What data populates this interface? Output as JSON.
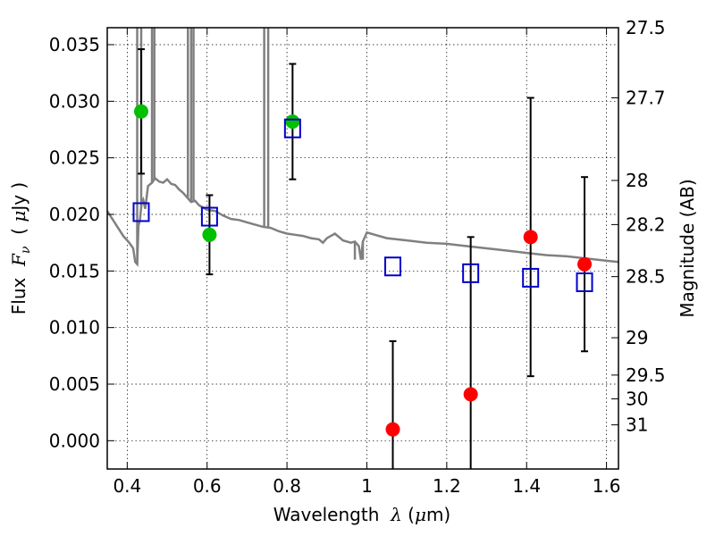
{
  "chart_data": {
    "type": "scatter",
    "xlabel": "Wavelength  λ (μm)",
    "ylabel": "Flux  Fν  ( μJy )",
    "ylabel_right": "Magnitude (AB)",
    "xlim": [
      0.35,
      1.63
    ],
    "ylim": [
      -0.0025,
      0.0365
    ],
    "grid": true,
    "x_ticks": [
      {
        "value": 0.4,
        "label": "0.4"
      },
      {
        "value": 0.6,
        "label": "0.6"
      },
      {
        "value": 0.8,
        "label": "0.8"
      },
      {
        "value": 1.0,
        "label": "1"
      },
      {
        "value": 1.2,
        "label": "1.2"
      },
      {
        "value": 1.4,
        "label": "1.4"
      },
      {
        "value": 1.6,
        "label": "1.6"
      }
    ],
    "y_ticks": [
      {
        "value": 0.0,
        "label": "0.000"
      },
      {
        "value": 0.005,
        "label": "0.005"
      },
      {
        "value": 0.01,
        "label": "0.010"
      },
      {
        "value": 0.015,
        "label": "0.015"
      },
      {
        "value": 0.02,
        "label": "0.020"
      },
      {
        "value": 0.025,
        "label": "0.025"
      },
      {
        "value": 0.03,
        "label": "0.030"
      },
      {
        "value": 0.035,
        "label": "0.035"
      }
    ],
    "right_ticks": [
      {
        "flux": 0.0365,
        "label": "27.5"
      },
      {
        "flux": 0.0303,
        "label": "27.7"
      },
      {
        "flux": 0.023,
        "label": "28"
      },
      {
        "flux": 0.0191,
        "label": "28.2"
      },
      {
        "flux": 0.0145,
        "label": "28.5"
      },
      {
        "flux": 0.0091,
        "label": "29"
      },
      {
        "flux": 0.0058,
        "label": "29.5"
      },
      {
        "flux": 0.0037,
        "label": "30"
      },
      {
        "flux": 0.0014,
        "label": "31"
      }
    ],
    "series": [
      {
        "name": "",
        "color": "#00c000",
        "marker": "circle",
        "points": [
          {
            "x": 0.435,
            "y": 0.0291,
            "err": 0.0055
          },
          {
            "x": 0.606,
            "y": 0.0182,
            "err": 0.0035
          },
          {
            "x": 0.814,
            "y": 0.0282,
            "err": 0.0051
          }
        ]
      },
      {
        "name": "",
        "color": "#ff0000",
        "marker": "circle",
        "points": [
          {
            "x": 1.065,
            "y": 0.001,
            "err": 0.0078
          },
          {
            "x": 1.26,
            "y": 0.0041,
            "err": 0.0139
          },
          {
            "x": 1.41,
            "y": 0.018,
            "err": 0.0123
          },
          {
            "x": 1.545,
            "y": 0.0156,
            "err": 0.0077
          }
        ]
      },
      {
        "name": "",
        "color": "#0000cc",
        "marker": "open-square",
        "points": [
          {
            "x": 0.435,
            "y": 0.0202
          },
          {
            "x": 0.606,
            "y": 0.0198
          },
          {
            "x": 0.814,
            "y": 0.0276
          },
          {
            "x": 1.065,
            "y": 0.0154
          },
          {
            "x": 1.26,
            "y": 0.0148
          },
          {
            "x": 1.41,
            "y": 0.0144
          },
          {
            "x": 1.545,
            "y": 0.014
          }
        ]
      }
    ],
    "spectrum": {
      "color": "#808080",
      "points": [
        [
          0.35,
          0.0203
        ],
        [
          0.37,
          0.0192
        ],
        [
          0.39,
          0.0181
        ],
        [
          0.405,
          0.0175
        ],
        [
          0.415,
          0.017
        ],
        [
          0.42,
          0.0158
        ],
        [
          0.425,
          0.0156
        ],
        [
          0.428,
          0.019
        ],
        [
          0.432,
          0.0195
        ],
        [
          0.436,
          0.021
        ],
        [
          0.44,
          0.0213
        ],
        [
          0.445,
          0.0205
        ],
        [
          0.452,
          0.0225
        ],
        [
          0.462,
          0.0228
        ],
        [
          0.47,
          0.0232
        ],
        [
          0.48,
          0.0229
        ],
        [
          0.49,
          0.0228
        ],
        [
          0.5,
          0.0231
        ],
        [
          0.51,
          0.0227
        ],
        [
          0.52,
          0.0226
        ],
        [
          0.53,
          0.0222
        ],
        [
          0.54,
          0.0219
        ],
        [
          0.55,
          0.0215
        ],
        [
          0.56,
          0.0211
        ],
        [
          0.57,
          0.0212
        ],
        [
          0.58,
          0.0208
        ],
        [
          0.59,
          0.0206
        ],
        [
          0.6,
          0.0204
        ],
        [
          0.62,
          0.0203
        ],
        [
          0.64,
          0.0199
        ],
        [
          0.66,
          0.0196
        ],
        [
          0.68,
          0.0195
        ],
        [
          0.7,
          0.0193
        ],
        [
          0.72,
          0.0191
        ],
        [
          0.74,
          0.0189
        ],
        [
          0.76,
          0.0188
        ],
        [
          0.78,
          0.0185
        ],
        [
          0.8,
          0.0183
        ],
        [
          0.82,
          0.0182
        ],
        [
          0.84,
          0.0181
        ],
        [
          0.86,
          0.0179
        ],
        [
          0.88,
          0.0178
        ],
        [
          0.89,
          0.0175
        ],
        [
          0.9,
          0.0179
        ],
        [
          0.92,
          0.0183
        ],
        [
          0.94,
          0.0177
        ],
        [
          0.96,
          0.0175
        ],
        [
          0.97,
          0.0176
        ],
        [
          0.98,
          0.0172
        ],
        [
          0.985,
          0.016
        ],
        [
          0.99,
          0.0176
        ],
        [
          1.0,
          0.0184
        ],
        [
          1.02,
          0.0182
        ],
        [
          1.05,
          0.0179
        ],
        [
          1.1,
          0.0177
        ],
        [
          1.15,
          0.0175
        ],
        [
          1.2,
          0.0174
        ],
        [
          1.25,
          0.0172
        ],
        [
          1.3,
          0.017
        ],
        [
          1.35,
          0.0168
        ],
        [
          1.4,
          0.0166
        ],
        [
          1.45,
          0.0164
        ],
        [
          1.5,
          0.0163
        ],
        [
          1.55,
          0.0161
        ],
        [
          1.6,
          0.0159
        ],
        [
          1.63,
          0.0158
        ]
      ],
      "spikes": [
        [
          0.425,
          0.0365
        ],
        [
          0.435,
          0.0365
        ],
        [
          0.462,
          0.0365
        ],
        [
          0.468,
          0.0365
        ],
        [
          0.552,
          0.0365
        ],
        [
          0.56,
          0.0365
        ],
        [
          0.566,
          0.0365
        ],
        [
          0.743,
          0.0365
        ],
        [
          0.753,
          0.0365
        ],
        [
          0.97,
          0.016
        ],
        [
          0.985,
          0.016
        ],
        [
          0.99,
          0.016
        ]
      ]
    }
  }
}
